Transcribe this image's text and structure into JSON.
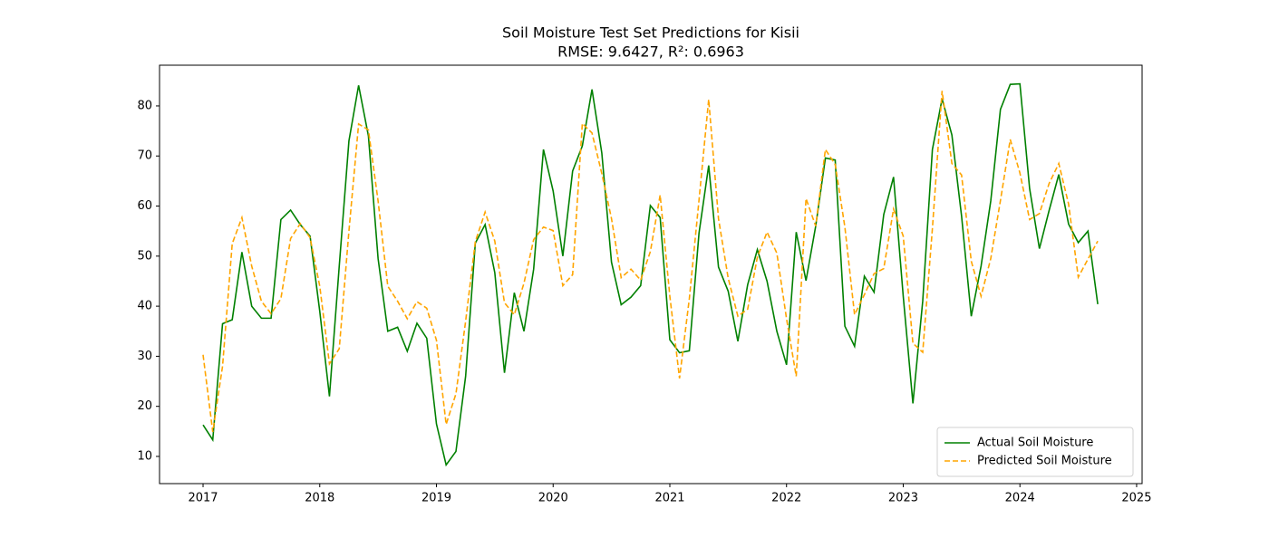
{
  "chart_data": {
    "type": "line",
    "title": "Soil Moisture Test Set Predictions for Kisii",
    "subtitle": "RMSE: 9.6427, R²: 0.6963",
    "x": [
      2017,
      2017.083,
      2017.167,
      2017.25,
      2017.333,
      2017.417,
      2017.5,
      2017.583,
      2017.667,
      2017.75,
      2017.833,
      2017.917,
      2018,
      2018.083,
      2018.167,
      2018.25,
      2018.333,
      2018.417,
      2018.5,
      2018.583,
      2018.667,
      2018.75,
      2018.833,
      2018.917,
      2019,
      2019.083,
      2019.167,
      2019.25,
      2019.333,
      2019.417,
      2019.5,
      2019.583,
      2019.667,
      2019.75,
      2019.833,
      2019.917,
      2020,
      2020.083,
      2020.167,
      2020.25,
      2020.333,
      2020.417,
      2020.5,
      2020.583,
      2020.667,
      2020.75,
      2020.833,
      2020.917,
      2021,
      2021.083,
      2021.167,
      2021.25,
      2021.333,
      2021.417,
      2021.5,
      2021.583,
      2021.667,
      2021.75,
      2021.833,
      2021.917,
      2022,
      2022.083,
      2022.167,
      2022.25,
      2022.333,
      2022.417,
      2022.5,
      2022.583,
      2022.667,
      2022.75,
      2022.833,
      2022.917,
      2023,
      2023.083,
      2023.167,
      2023.25,
      2023.333,
      2023.417,
      2023.5,
      2023.583,
      2023.667,
      2023.75,
      2023.833,
      2023.917,
      2024,
      2024.083,
      2024.167,
      2024.25,
      2024.333,
      2024.417,
      2024.5,
      2024.583,
      2024.667
    ],
    "series": [
      {
        "name": "Actual Soil Moisture",
        "color": "#008000",
        "linestyle": "solid",
        "values": [
          16.3,
          13.3,
          36.5,
          37.3,
          50.8,
          40,
          37.6,
          37.6,
          57.3,
          59.2,
          56.3,
          54,
          39,
          22,
          48,
          73,
          84.1,
          74,
          49.5,
          35,
          35.8,
          31,
          36.6,
          33.6,
          16.5,
          8.3,
          11,
          26,
          52.6,
          56.3,
          46.7,
          26.7,
          42.7,
          35,
          47.4,
          71.3,
          63,
          50,
          67,
          72,
          83.3,
          70.6,
          48.8,
          40.3,
          41.8,
          44.1,
          60.1,
          57.7,
          33.3,
          30.7,
          31.1,
          54.6,
          68.1,
          47.8,
          43,
          33,
          44.3,
          51.3,
          45,
          35,
          28.3,
          54.8,
          45.1,
          56,
          69.6,
          69.2,
          36,
          32,
          46,
          42.8,
          58.3,
          65.8,
          42,
          20.6,
          41,
          71.3,
          81.4,
          74.2,
          58,
          38,
          48,
          61,
          79.3,
          84.3,
          84.4,
          63.5,
          51.5,
          59.1,
          66.3,
          56.4,
          52.7,
          55,
          40.4
        ]
      },
      {
        "name": "Predicted Soil Moisture",
        "color": "#ffa500",
        "linestyle": "dashed",
        "values": [
          30.3,
          14.9,
          28,
          52.5,
          57.7,
          48,
          41,
          38.5,
          41.5,
          53.5,
          56.5,
          53.7,
          44,
          28.5,
          31.5,
          55,
          76.4,
          75.2,
          61,
          44,
          41,
          37.5,
          40.9,
          39.6,
          33.2,
          16.4,
          22.5,
          37,
          52.9,
          58.8,
          53,
          40.7,
          38.3,
          44.6,
          53.3,
          55.8,
          55.1,
          44.1,
          46.3,
          76.5,
          74.6,
          66.5,
          57.5,
          45.7,
          47.4,
          45.2,
          50.9,
          62.2,
          42,
          25.6,
          41.5,
          61.2,
          81.3,
          57.5,
          45.6,
          38,
          39.4,
          49.8,
          54.8,
          50.6,
          37.5,
          26,
          61.5,
          56,
          71.3,
          68.3,
          55.8,
          38.3,
          42.3,
          46.5,
          47.5,
          59.4,
          54,
          32.6,
          30.8,
          55.5,
          83,
          68.5,
          66.2,
          49,
          42,
          49.5,
          61.1,
          73.3,
          66.6,
          57.3,
          58.5,
          64.5,
          68.5,
          60.4,
          45.8,
          49.4,
          53
        ]
      }
    ],
    "xlim": [
      2016.627,
      2025.047
    ],
    "ylim": [
      4.57,
      88.13
    ],
    "xticks": [
      2017,
      2018,
      2019,
      2020,
      2021,
      2022,
      2023,
      2024,
      2025
    ],
    "yticks": [
      10,
      20,
      30,
      40,
      50,
      60,
      70,
      80
    ],
    "grid": false,
    "legend": "lower right"
  }
}
